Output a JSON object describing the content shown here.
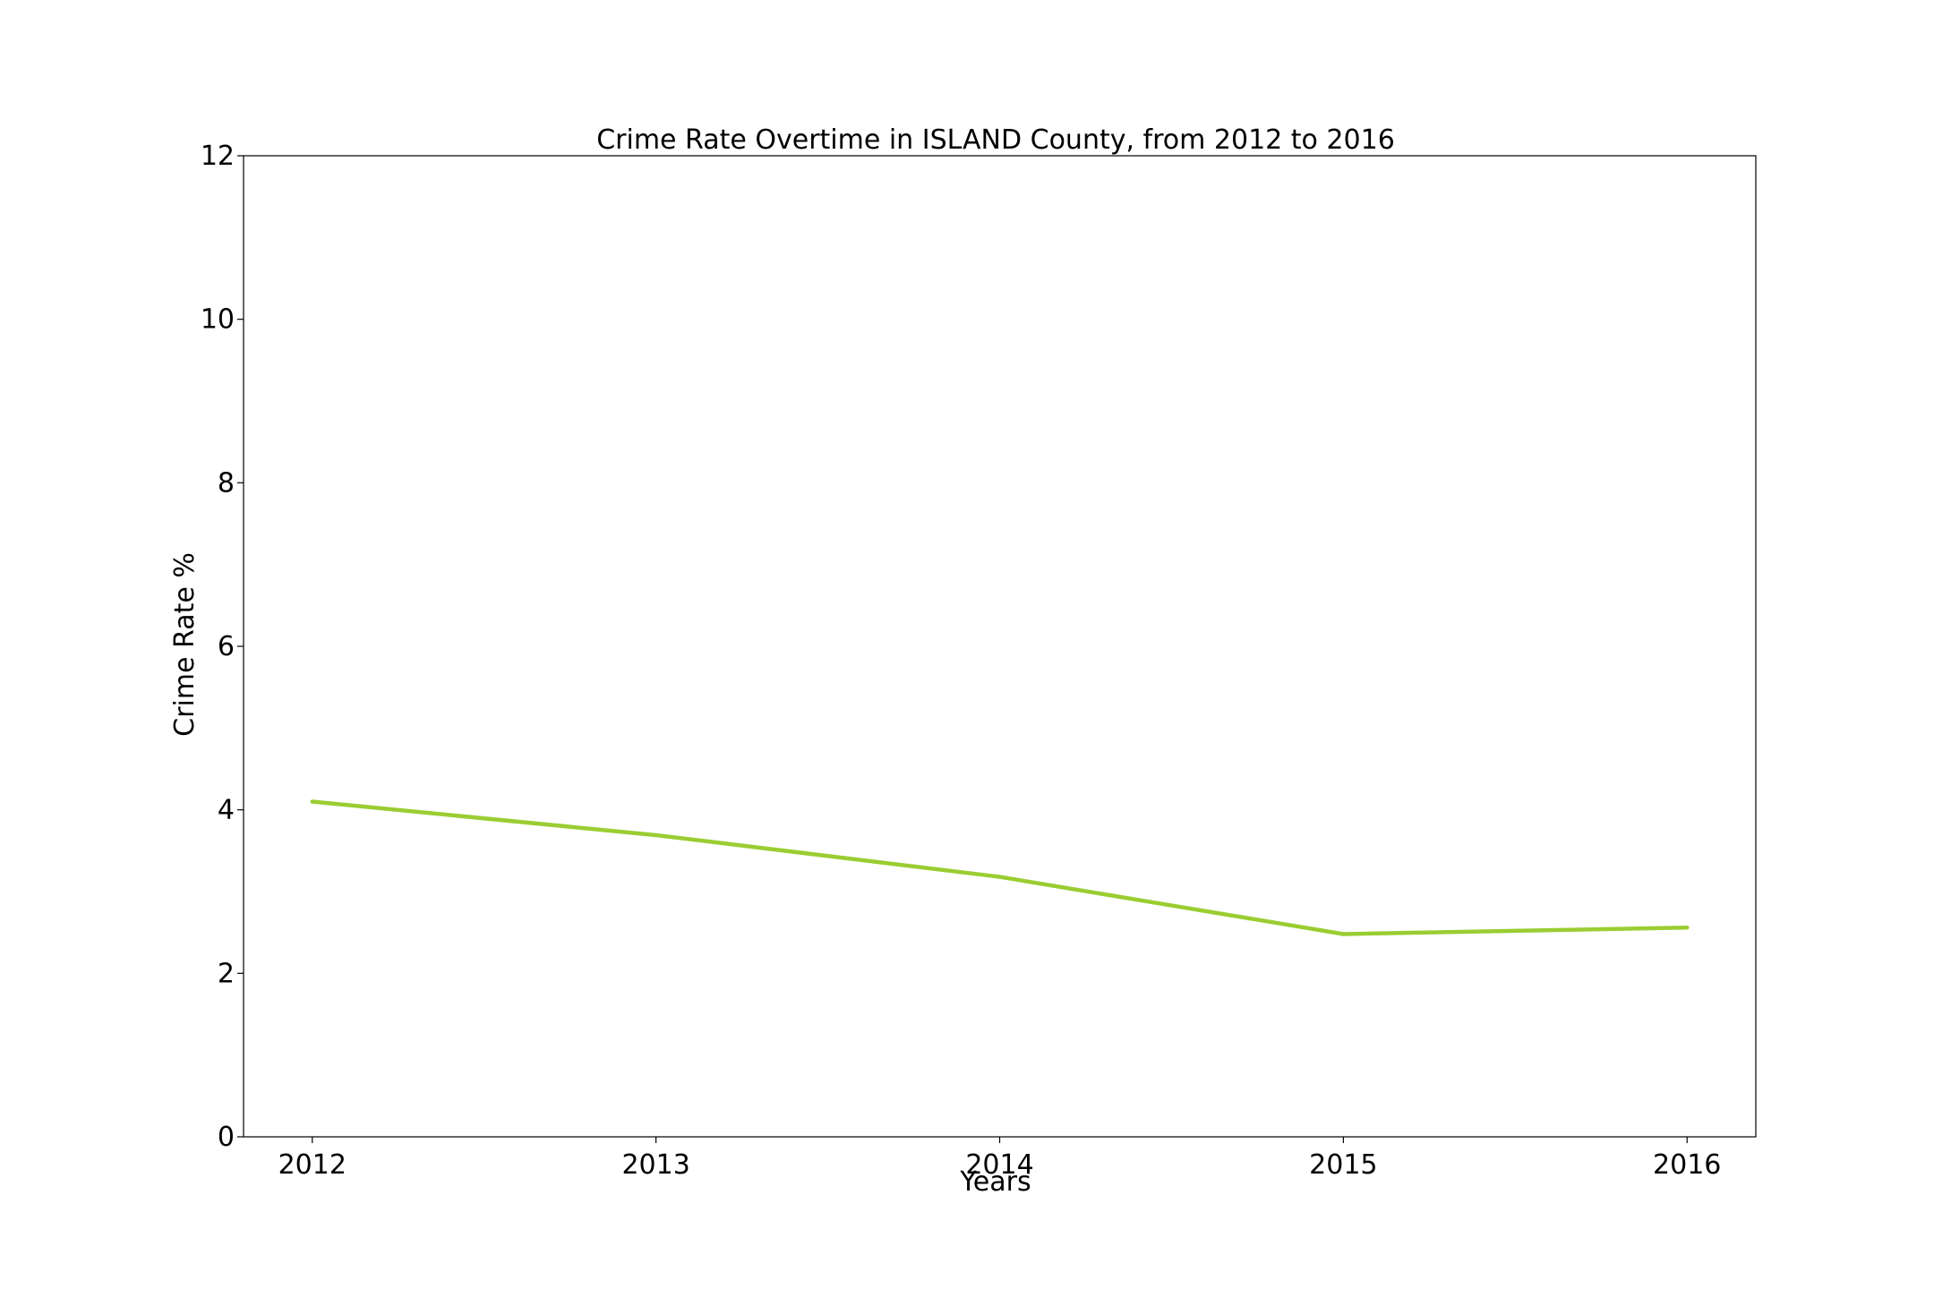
{
  "chart_data": {
    "type": "line",
    "title": "Crime Rate Overtime in ISLAND County, from 2012 to 2016",
    "xlabel": "Years",
    "ylabel": "Crime Rate %",
    "x": [
      2012,
      2013,
      2014,
      2015,
      2016
    ],
    "x_tick_labels": [
      "2012",
      "2013",
      "2014",
      "2015",
      "2016"
    ],
    "xlim": [
      2011.8,
      2016.2
    ],
    "ylim": [
      0,
      12
    ],
    "y_ticks": [
      0,
      2,
      4,
      6,
      8,
      10,
      12
    ],
    "y_tick_labels": [
      "0",
      "2",
      "4",
      "6",
      "8",
      "10",
      "12"
    ],
    "grid": false,
    "legend": "none",
    "series": [
      {
        "values": [
          4.1,
          3.69,
          3.18,
          2.48,
          2.56
        ],
        "color": "#9acd32"
      }
    ]
  }
}
